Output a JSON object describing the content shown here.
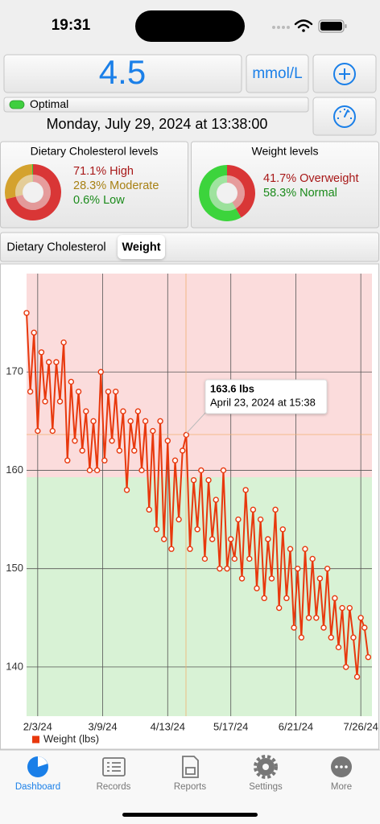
{
  "status_bar": {
    "time": "19:31"
  },
  "reading": {
    "value": 4.5,
    "unit": "mmol/L",
    "status": "Optimal",
    "date": "Monday, July 29, 2024 at 13:38:00"
  },
  "donuts": [
    {
      "title": "Dietary Cholesterol levels",
      "slices": [
        {
          "label": "71.1% High",
          "value": 71.1,
          "color": "#d93636",
          "text_color": "#a81818"
        },
        {
          "label": "28.3% Moderate",
          "value": 28.3,
          "color": "#d4a22e",
          "text_color": "#a88114"
        },
        {
          "label": "0.6% Low",
          "value": 0.6,
          "color": "#3cc43c",
          "text_color": "#1a8a1a"
        }
      ]
    },
    {
      "title": "Weight levels",
      "slices": [
        {
          "label": "41.7% Overweight",
          "value": 41.7,
          "color": "#d93636",
          "text_color": "#a81818"
        },
        {
          "label": "58.3% Normal",
          "value": 58.3,
          "color": "#3cd43c",
          "text_color": "#1a8a1a"
        }
      ]
    }
  ],
  "chart_tabs": {
    "items": [
      "Dietary Cholesterol",
      "Weight"
    ],
    "selected": 1
  },
  "chart_data": {
    "type": "line",
    "x": [
      "2024-01-28",
      "2024-01-30",
      "2024-02-01",
      "2024-02-03",
      "2024-02-05",
      "2024-02-07",
      "2024-02-09",
      "2024-02-11",
      "2024-02-13",
      "2024-02-15",
      "2024-02-17",
      "2024-02-19",
      "2024-02-21",
      "2024-02-23",
      "2024-02-25",
      "2024-02-27",
      "2024-02-29",
      "2024-03-02",
      "2024-03-04",
      "2024-03-06",
      "2024-03-08",
      "2024-03-10",
      "2024-03-12",
      "2024-03-14",
      "2024-03-16",
      "2024-03-18",
      "2024-03-20",
      "2024-03-22",
      "2024-03-24",
      "2024-03-26",
      "2024-03-28",
      "2024-03-30",
      "2024-04-01",
      "2024-04-03",
      "2024-04-05",
      "2024-04-07",
      "2024-04-09",
      "2024-04-11",
      "2024-04-13",
      "2024-04-15",
      "2024-04-17",
      "2024-04-19",
      "2024-04-21",
      "2024-04-23",
      "2024-04-25",
      "2024-04-27",
      "2024-04-29",
      "2024-05-01",
      "2024-05-03",
      "2024-05-05",
      "2024-05-07",
      "2024-05-09",
      "2024-05-11",
      "2024-05-13",
      "2024-05-15",
      "2024-05-17",
      "2024-05-19",
      "2024-05-21",
      "2024-05-23",
      "2024-05-25",
      "2024-05-27",
      "2024-05-29",
      "2024-05-31",
      "2024-06-02",
      "2024-06-04",
      "2024-06-06",
      "2024-06-08",
      "2024-06-10",
      "2024-06-12",
      "2024-06-14",
      "2024-06-16",
      "2024-06-18",
      "2024-06-20",
      "2024-06-22",
      "2024-06-24",
      "2024-06-26",
      "2024-06-28",
      "2024-06-30",
      "2024-07-02",
      "2024-07-04",
      "2024-07-06",
      "2024-07-08",
      "2024-07-10",
      "2024-07-12",
      "2024-07-14",
      "2024-07-16",
      "2024-07-18",
      "2024-07-20",
      "2024-07-22",
      "2024-07-24",
      "2024-07-26",
      "2024-07-28",
      "2024-07-30"
    ],
    "series": [
      {
        "name": "Weight (lbs)",
        "color": "#e8380d",
        "values": [
          176,
          168,
          174,
          164,
          172,
          167,
          171,
          164,
          171,
          167,
          173,
          161,
          169,
          163,
          168,
          162,
          166,
          160,
          165,
          160,
          170,
          161,
          168,
          163,
          168,
          162,
          166,
          158,
          165,
          162,
          166,
          160,
          165,
          156,
          164,
          154,
          165,
          153,
          163,
          152,
          161,
          155,
          162,
          163.6,
          152,
          159,
          154,
          160,
          151,
          159,
          153,
          157,
          150,
          160,
          150,
          153,
          151,
          155,
          149,
          158,
          151,
          156,
          148,
          155,
          147,
          153,
          149,
          156,
          146,
          154,
          147,
          152,
          144,
          150,
          143,
          152,
          145,
          151,
          145,
          149,
          144,
          150,
          143,
          147,
          142,
          146,
          140,
          146,
          143,
          139,
          145,
          144,
          141
        ]
      }
    ],
    "xlim": [
      "2024-01-28",
      "2024-08-01"
    ],
    "xticks": [
      {
        "value": "2024-02-03",
        "label": "2/3/24"
      },
      {
        "value": "2024-03-09",
        "label": "3/9/24"
      },
      {
        "value": "2024-04-13",
        "label": "4/13/24"
      },
      {
        "value": "2024-05-17",
        "label": "5/17/24"
      },
      {
        "value": "2024-06-21",
        "label": "6/21/24"
      },
      {
        "value": "2024-07-26",
        "label": "7/26/24"
      }
    ],
    "ylim": [
      135,
      180
    ],
    "yticks": [
      140,
      150,
      160,
      170
    ],
    "grid": true,
    "legend": "bottom-left",
    "zones": [
      {
        "from": 159.3,
        "to": 180,
        "color": "#fbdcdc"
      },
      {
        "from": 135,
        "to": 159.3,
        "color": "#d8f2d5"
      }
    ]
  },
  "tooltip": {
    "value": "163.6 lbs",
    "date": "April 23, 2024 at 15:38"
  },
  "tab_bar": {
    "items": [
      "Dashboard",
      "Records",
      "Reports",
      "Settings",
      "More"
    ],
    "active": 0
  }
}
